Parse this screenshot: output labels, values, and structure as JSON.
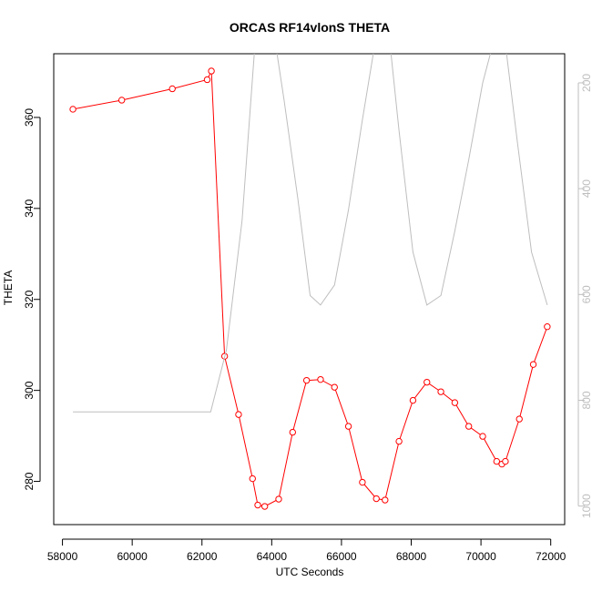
{
  "chart_data": {
    "type": "line",
    "title": "ORCAS RF14vlonS THETA",
    "xlabel": "UTC Seconds",
    "ylabel": "THETA",
    "xlim": [
      57750,
      72400
    ],
    "ylim": [
      270.5,
      374
    ],
    "x_ticks": [
      58000,
      60000,
      62000,
      64000,
      66000,
      68000,
      70000,
      72000
    ],
    "y_ticks": [
      280,
      300,
      320,
      340,
      360
    ],
    "y2_lim": [
      1035,
      145
    ],
    "y2_ticks": [
      200,
      400,
      600,
      800,
      1000
    ],
    "series": [
      {
        "color": "#ff0000",
        "marker": "circle",
        "axis": "left",
        "x": [
          58300,
          59700,
          61150,
          62150,
          62270,
          62650,
          63050,
          63450,
          63600,
          63800,
          64200,
          64600,
          65000,
          65400,
          65800,
          66200,
          66600,
          67000,
          67250,
          67650,
          68050,
          68450,
          68850,
          69250,
          69650,
          70050,
          70450,
          70600,
          70700,
          71100,
          71500,
          71900
        ],
        "y": [
          361.8,
          363.8,
          366.3,
          368.3,
          370.2,
          307.5,
          294.7,
          280.6,
          274.8,
          274.5,
          276.1,
          290.8,
          302.2,
          302.4,
          300.7,
          292.1,
          279.8,
          276.2,
          275.9,
          288.8,
          297.8,
          301.8,
          299.7,
          297.3,
          292.1,
          289.9,
          284.4,
          283.8,
          284.4,
          293.7,
          305.7,
          314.0
        ]
      },
      {
        "color": "#bebebe",
        "marker": "none",
        "axis": "right",
        "x": [
          58300,
          62250,
          62700,
          63150,
          63550,
          64050,
          64350,
          64750,
          65100,
          65400,
          65800,
          66200,
          66600,
          67000,
          67350,
          67650,
          68050,
          68450,
          68850,
          69250,
          69650,
          70050,
          70450,
          70650,
          71050,
          71450,
          71900
        ],
        "y": [
          822,
          822,
          705,
          460,
          100,
          100,
          230,
          420,
          602,
          620,
          582,
          440,
          270,
          110,
          100,
          290,
          520,
          620,
          602,
          480,
          345,
          200,
          100,
          100,
          315,
          520,
          620
        ]
      }
    ]
  }
}
